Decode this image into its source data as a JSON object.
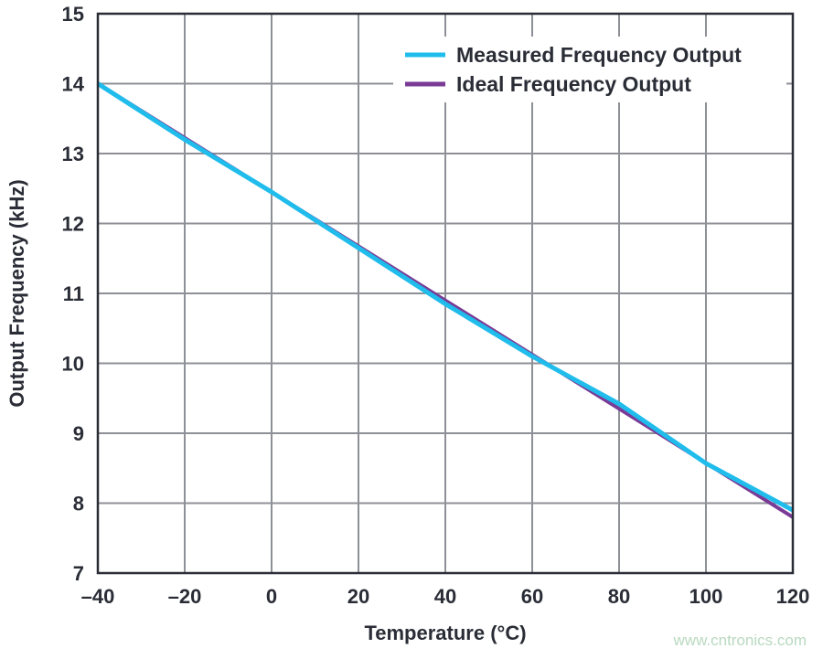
{
  "chart_data": {
    "type": "line",
    "title": "",
    "xlabel": "Temperature (°C)",
    "ylabel": "Output Frequency (kHz)",
    "xlim": [
      -40,
      120
    ],
    "ylim": [
      7,
      15
    ],
    "xticks": [
      -40,
      -20,
      0,
      20,
      40,
      60,
      80,
      100,
      120
    ],
    "xtick_labels": [
      "–40",
      "–20",
      "0",
      "20",
      "40",
      "60",
      "80",
      "100",
      "120"
    ],
    "yticks": [
      7,
      8,
      9,
      10,
      11,
      12,
      13,
      14,
      15
    ],
    "grid": true,
    "legend_placement": "top-right",
    "x": [
      -40,
      -20,
      0,
      20,
      40,
      60,
      80,
      100,
      120
    ],
    "series": [
      {
        "name": "Measured Frequency Output",
        "color": "#1fbcec",
        "values": [
          14.0,
          13.2,
          12.45,
          11.65,
          10.85,
          10.1,
          9.42,
          8.57,
          7.9
        ]
      },
      {
        "name": "Ideal Frequency Output",
        "color": "#7a3b96",
        "values": [
          14.0,
          13.225,
          12.45,
          11.675,
          10.9,
          10.125,
          9.35,
          8.575,
          7.8
        ]
      }
    ]
  },
  "watermark": "www.cntronics.com"
}
